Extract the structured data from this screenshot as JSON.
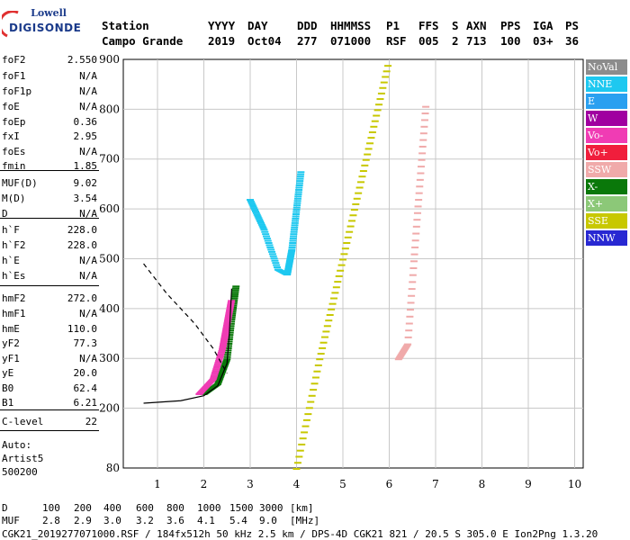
{
  "logo": {
    "line1": "Lowell",
    "line2": "DIGISONDE"
  },
  "header": {
    "labels_row": [
      "Station",
      "YYYY",
      "DAY",
      "DDD",
      "HHMMSS",
      "P1",
      "FFS",
      "S",
      "AXN",
      "PPS",
      "IGA",
      "PS"
    ],
    "values_row": [
      "Campo Grande",
      "2019",
      "Oct04",
      "277",
      "071000",
      "RSF",
      "005",
      "2",
      "713",
      "100",
      "03+",
      "36"
    ]
  },
  "scaled": [
    {
      "k": "foF2",
      "v": "2.550"
    },
    {
      "k": "foF1",
      "v": "N/A"
    },
    {
      "k": "foF1p",
      "v": "N/A"
    },
    {
      "k": "foE",
      "v": "N/A"
    },
    {
      "k": "foEp",
      "v": "0.36"
    },
    {
      "k": "fxI",
      "v": "2.95"
    },
    {
      "k": "foEs",
      "v": "N/A"
    },
    {
      "k": "fmin",
      "v": "1.85"
    },
    {
      "k": "MUF(D)",
      "v": "9.02"
    },
    {
      "k": "M(D)",
      "v": "3.54"
    },
    {
      "k": "D",
      "v": "N/A"
    },
    {
      "k": "h`F",
      "v": "228.0"
    },
    {
      "k": "h`F2",
      "v": "228.0"
    },
    {
      "k": "h`E",
      "v": "N/A"
    },
    {
      "k": "h`Es",
      "v": "N/A"
    },
    {
      "k": "hmF2",
      "v": "272.0"
    },
    {
      "k": "hmF1",
      "v": "N/A"
    },
    {
      "k": "hmE",
      "v": "110.0"
    },
    {
      "k": "yF2",
      "v": "77.3"
    },
    {
      "k": "yF1",
      "v": "N/A"
    },
    {
      "k": "yE",
      "v": "20.0"
    },
    {
      "k": "B0",
      "v": "62.4"
    },
    {
      "k": "B1",
      "v": "6.21"
    },
    {
      "k": "C-level",
      "v": "22"
    }
  ],
  "auto": {
    "line1": "Auto:",
    "line2": "Artist5",
    "line3": "500200"
  },
  "legend": [
    {
      "label": "NoVal",
      "color": "#8c8c8c"
    },
    {
      "label": "NNE",
      "color": "#1ec8f0"
    },
    {
      "label": "E",
      "color": "#2aa0f0"
    },
    {
      "label": "W",
      "color": "#a000a0"
    },
    {
      "label": "Vo-",
      "color": "#f03cb4"
    },
    {
      "label": "Vo+",
      "color": "#f01e3c"
    },
    {
      "label": "SSW",
      "color": "#f0aaaa"
    },
    {
      "label": "X-",
      "color": "#0a780a"
    },
    {
      "label": "X+",
      "color": "#8cc878"
    },
    {
      "label": "SSE",
      "color": "#c8c800"
    },
    {
      "label": "NNW",
      "color": "#2828d2"
    }
  ],
  "footer": {
    "d_label": "D",
    "d_values": [
      "100",
      "200",
      "400",
      "600",
      "800",
      "1000",
      "1500",
      "3000"
    ],
    "d_unit": "[km]",
    "muf_label": "MUF",
    "muf_values": [
      "2.8",
      "2.9",
      "3.0",
      "3.2",
      "3.6",
      "4.1",
      "5.4",
      "9.0"
    ],
    "muf_unit": "[MHz]",
    "info": "CGK21_2019277071000.RSF / 184fx512h 50 kHz 2.5 km / DPS-4D CGK21 821 / 20.5 S 305.0 E Ion2Png 1.3.20"
  },
  "chart_data": {
    "type": "scatter",
    "title": "",
    "xlabel": "",
    "ylabel": "",
    "xlim": [
      0.7,
      10
    ],
    "ylim": [
      80,
      900
    ],
    "x_ticks": [
      1,
      2,
      3,
      4,
      5,
      6,
      7,
      8,
      9,
      10
    ],
    "y_ticks": [
      80,
      200,
      300,
      400,
      500,
      600,
      700,
      800,
      900
    ],
    "grid": true,
    "legend_position": "right",
    "echo_traces": [
      {
        "name": "NNE",
        "color": "#1ec8f0",
        "x": [
          3.0,
          3.3,
          3.6,
          3.8,
          3.9,
          4.0,
          4.1
        ],
        "y": [
          620,
          560,
          480,
          470,
          520,
          600,
          680
        ]
      },
      {
        "name": "SSE",
        "color": "#c8c800",
        "x": [
          4.0,
          4.5,
          5.0,
          5.5,
          6.0
        ],
        "y": [
          80,
          300,
          500,
          700,
          900
        ]
      },
      {
        "name": "SSW",
        "color": "#f0aaaa",
        "x": [
          6.2,
          6.4,
          6.6,
          6.8
        ],
        "y": [
          300,
          330,
          580,
          820
        ]
      },
      {
        "name": "X-",
        "color": "#0a780a",
        "x": [
          2.0,
          2.3,
          2.5,
          2.6,
          2.7
        ],
        "y": [
          230,
          250,
          300,
          380,
          450
        ]
      },
      {
        "name": "Vo-",
        "color": "#f03cb4",
        "x": [
          1.9,
          2.2,
          2.4,
          2.5,
          2.6
        ],
        "y": [
          230,
          260,
          320,
          370,
          420
        ]
      }
    ],
    "profile_curve": {
      "x": [
        0.7,
        1.5,
        2.0,
        2.3,
        2.5,
        2.55,
        2.6
      ],
      "y": [
        210,
        215,
        225,
        245,
        290,
        350,
        440
      ]
    },
    "ionogram_dashed": {
      "x": [
        0.7,
        1.2,
        1.8,
        2.2,
        2.5
      ],
      "y": [
        490,
        430,
        370,
        320,
        270
      ]
    }
  }
}
